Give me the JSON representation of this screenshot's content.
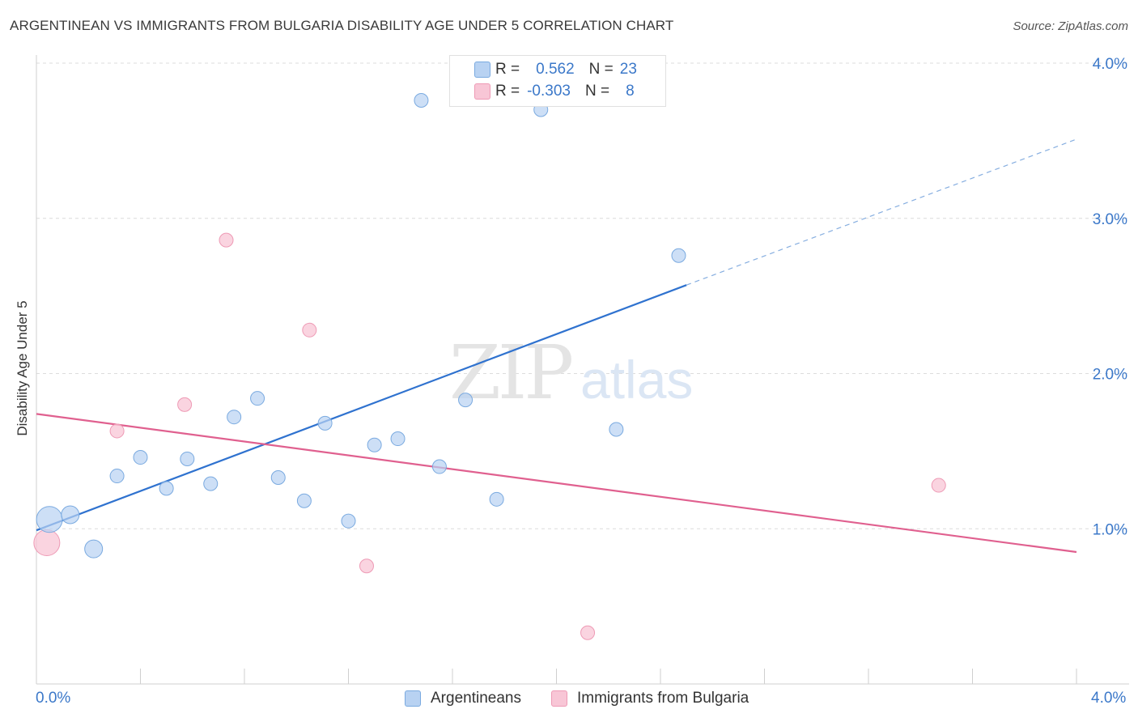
{
  "header": {
    "title": "ARGENTINEAN VS IMMIGRANTS FROM BULGARIA DISABILITY AGE UNDER 5 CORRELATION CHART",
    "source": "Source: ZipAtlas.com"
  },
  "watermark": {
    "zip": "ZIP",
    "atlas": "atlas"
  },
  "legend_top": {
    "rows": [
      {
        "r_label": "R =",
        "r_value": "0.562",
        "n_label": "N =",
        "n_value": "23"
      },
      {
        "r_label": "R =",
        "r_value": "-0.303",
        "n_label": "N =",
        "n_value": "8"
      }
    ]
  },
  "colors": {
    "argentineans_fill": "#b8d2f2",
    "argentineans_stroke": "#7aaae0",
    "argentineans_line": "#2f72cf",
    "bulgaria_fill": "#f8c6d6",
    "bulgaria_stroke": "#ee9ab5",
    "bulgaria_line": "#e0608f",
    "tick_text": "#3b78c9"
  },
  "chart_data": {
    "type": "scatter",
    "title": "ARGENTINEAN VS IMMIGRANTS FROM BULGARIA DISABILITY AGE UNDER 5 CORRELATION CHART",
    "xlabel": "",
    "ylabel": "Disability Age Under 5",
    "xlim": [
      0.0,
      4.0
    ],
    "ylim": [
      0.0,
      4.0
    ],
    "x_tick_labels": [
      "0.0%",
      "4.0%"
    ],
    "y_tick_labels": [
      "1.0%",
      "2.0%",
      "3.0%",
      "4.0%"
    ],
    "y_ticks": [
      1.0,
      2.0,
      3.0,
      4.0
    ],
    "grid": true,
    "legend_position": "top-center",
    "series": [
      {
        "name": "Argentineans",
        "r": 0.562,
        "n": 23,
        "points": [
          {
            "x": 0.05,
            "y": 1.06,
            "size": "large"
          },
          {
            "x": 0.13,
            "y": 1.09,
            "size": "medium"
          },
          {
            "x": 0.22,
            "y": 0.87,
            "size": "medium"
          },
          {
            "x": 0.31,
            "y": 1.34,
            "size": "small"
          },
          {
            "x": 0.4,
            "y": 1.46,
            "size": "small"
          },
          {
            "x": 0.5,
            "y": 1.26,
            "size": "small"
          },
          {
            "x": 0.58,
            "y": 1.45,
            "size": "small"
          },
          {
            "x": 0.67,
            "y": 1.29,
            "size": "small"
          },
          {
            "x": 0.76,
            "y": 1.72,
            "size": "small"
          },
          {
            "x": 0.85,
            "y": 1.84,
            "size": "small"
          },
          {
            "x": 0.93,
            "y": 1.33,
            "size": "small"
          },
          {
            "x": 1.03,
            "y": 1.18,
            "size": "small"
          },
          {
            "x": 1.11,
            "y": 1.68,
            "size": "small"
          },
          {
            "x": 1.2,
            "y": 1.05,
            "size": "small"
          },
          {
            "x": 1.3,
            "y": 1.54,
            "size": "small"
          },
          {
            "x": 1.39,
            "y": 1.58,
            "size": "small"
          },
          {
            "x": 1.48,
            "y": 3.76,
            "size": "small"
          },
          {
            "x": 1.55,
            "y": 1.4,
            "size": "small"
          },
          {
            "x": 1.65,
            "y": 1.83,
            "size": "small"
          },
          {
            "x": 1.77,
            "y": 1.19,
            "size": "small"
          },
          {
            "x": 1.94,
            "y": 3.7,
            "size": "small"
          },
          {
            "x": 2.23,
            "y": 1.64,
            "size": "small"
          },
          {
            "x": 2.47,
            "y": 2.76,
            "size": "small"
          }
        ],
        "trend": {
          "x_start": 0.0,
          "y_start": 0.99,
          "x_solid_end": 2.5,
          "y_solid_end": 2.57,
          "x_dash_end": 4.0,
          "y_dash_end": 3.51
        }
      },
      {
        "name": "Immigrants from Bulgaria",
        "r": -0.303,
        "n": 8,
        "points": [
          {
            "x": 0.04,
            "y": 0.91,
            "size": "large"
          },
          {
            "x": 0.31,
            "y": 1.63,
            "size": "small"
          },
          {
            "x": 0.57,
            "y": 1.8,
            "size": "small"
          },
          {
            "x": 0.73,
            "y": 2.86,
            "size": "small"
          },
          {
            "x": 1.05,
            "y": 2.28,
            "size": "small"
          },
          {
            "x": 1.27,
            "y": 0.76,
            "size": "small"
          },
          {
            "x": 2.12,
            "y": 0.33,
            "size": "small"
          },
          {
            "x": 3.47,
            "y": 1.28,
            "size": "small"
          }
        ],
        "trend": {
          "x_start": 0.0,
          "y_start": 1.74,
          "x_end": 4.0,
          "y_end": 0.85
        }
      }
    ]
  },
  "bottom_legend": {
    "items": [
      {
        "label": "Argentineans"
      },
      {
        "label": "Immigrants from Bulgaria"
      }
    ]
  }
}
